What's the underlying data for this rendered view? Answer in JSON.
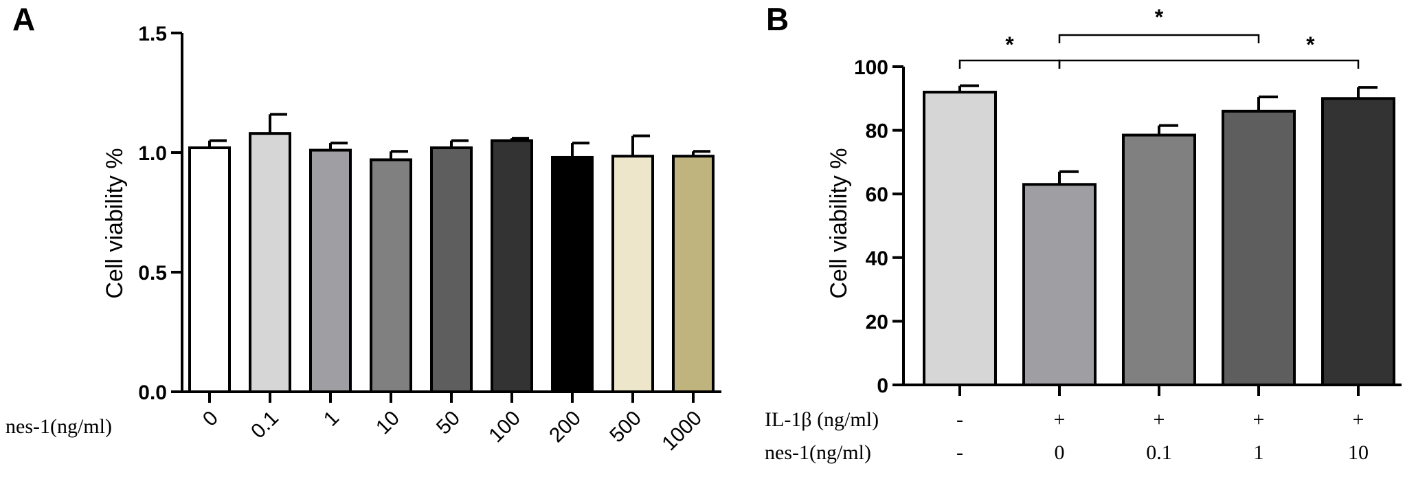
{
  "chart_data": [
    {
      "type": "bar",
      "panel": "A",
      "ylabel": "Cell viability %",
      "xlabel": "nes-1(ng/ml)",
      "ylim": [
        0,
        1.5
      ],
      "yticks": [
        "0.0",
        "0.5",
        "1.0",
        "1.5"
      ],
      "categories": [
        "0",
        "0.1",
        "1",
        "10",
        "50",
        "100",
        "200",
        "500",
        "1000"
      ],
      "values": [
        1.02,
        1.08,
        1.01,
        0.97,
        1.02,
        1.05,
        0.98,
        0.985,
        0.985
      ],
      "errors": [
        0.03,
        0.08,
        0.03,
        0.035,
        0.03,
        0.01,
        0.06,
        0.085,
        0.02
      ],
      "colors": [
        "#ffffff",
        "#d6d6d6",
        "#9e9ea3",
        "#808080",
        "#5e5e5e",
        "#333333",
        "#000000",
        "#ede6cb",
        "#bfb47e"
      ],
      "grid": false
    },
    {
      "type": "bar",
      "panel": "B",
      "ylabel": "Cell viability %",
      "ylim": [
        0,
        100
      ],
      "yticks": [
        "0",
        "20",
        "40",
        "60",
        "80",
        "100"
      ],
      "row_labels": [
        "IL-1β (ng/ml)",
        "nes-1(ng/ml)"
      ],
      "il1b": [
        "-",
        "+",
        "+",
        "+",
        "+"
      ],
      "nes1": [
        "-",
        "0",
        "0.1",
        "1",
        "10"
      ],
      "values": [
        92,
        63,
        78.5,
        86,
        90
      ],
      "errors": [
        2,
        4,
        3,
        4.5,
        3.5
      ],
      "colors": [
        "#d6d6d6",
        "#9e9ea3",
        "#808080",
        "#5e5e5e",
        "#333333"
      ],
      "significance": [
        {
          "from": 0,
          "to": 1,
          "label": "*"
        },
        {
          "from": 1,
          "to": 3,
          "label": "*"
        },
        {
          "from": 1,
          "to": 4,
          "label": "*"
        }
      ],
      "grid": false
    }
  ]
}
